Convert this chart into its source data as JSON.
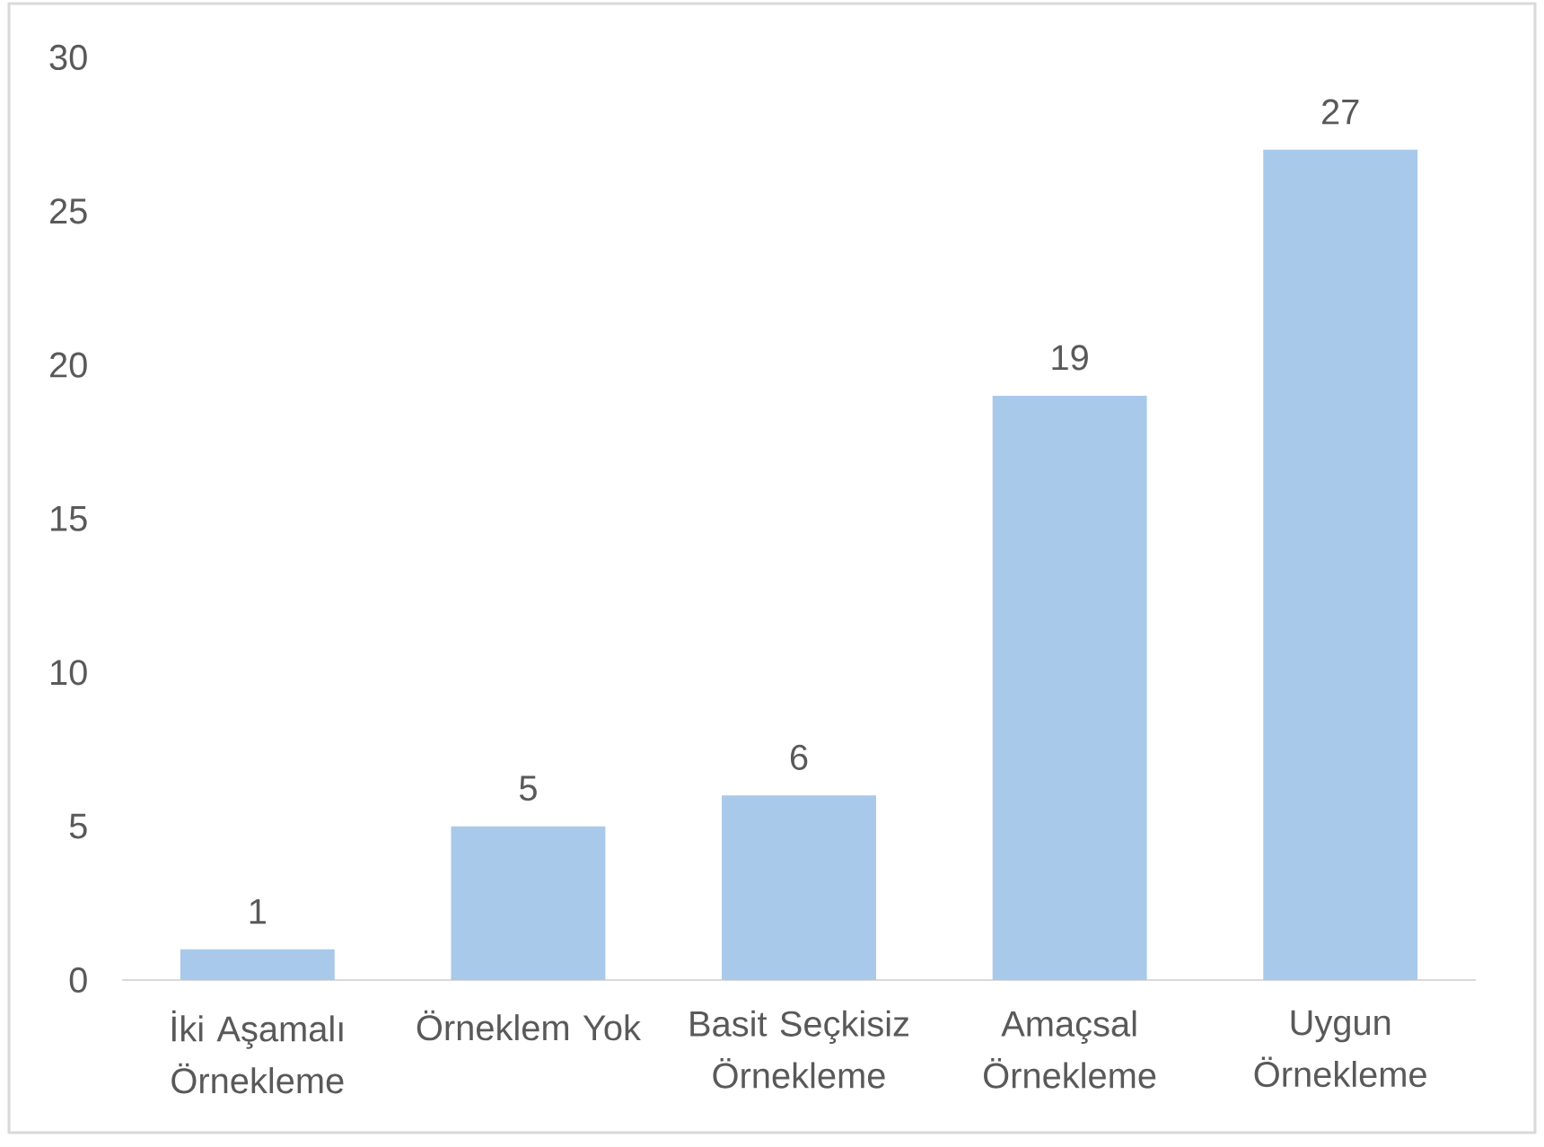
{
  "chart_data": {
    "type": "bar",
    "categories": [
      "İki Aşamalı Örnekleme",
      "Örneklem Yok",
      "Basit Seçkisiz Örnekleme",
      "Amaçsal Örnekleme",
      "Uygun Örnekleme"
    ],
    "values": [
      1,
      5,
      6,
      19,
      27
    ],
    "color": "#a9c9ea",
    "ylim": [
      0,
      30
    ],
    "yticks": [
      0,
      5,
      10,
      15,
      20,
      25,
      30
    ],
    "data_labels": true
  }
}
